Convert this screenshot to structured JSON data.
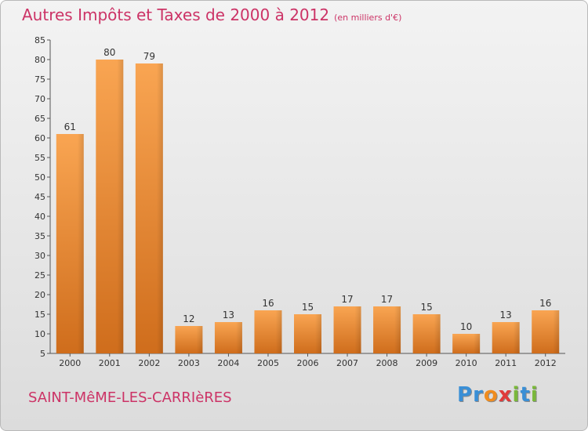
{
  "header": {
    "title": "Autres Impôts et Taxes de 2000 à 2012",
    "unit": "(en milliers d'€)"
  },
  "footer": {
    "commune": "SAINT-MêME-LES-CARRIèRES",
    "logo_letters": [
      "P",
      "r",
      "o",
      "x",
      "i",
      "t",
      "i"
    ],
    "logo_colors": [
      "#3a8fd6",
      "#3a8fd6",
      "#f08c1e",
      "#e03a3a",
      "#7ab83a",
      "#3a8fd6",
      "#7ab83a"
    ]
  },
  "colors": {
    "title": "#cc3366",
    "bar_light": "#f9a552",
    "bar_dark": "#cf6d1c",
    "axis": "#555555"
  },
  "chart_data": {
    "type": "bar",
    "categories": [
      "2000",
      "2001",
      "2002",
      "2003",
      "2004",
      "2005",
      "2006",
      "2007",
      "2008",
      "2009",
      "2010",
      "2011",
      "2012"
    ],
    "values": [
      61,
      80,
      79,
      12,
      13,
      16,
      15,
      17,
      17,
      15,
      10,
      13,
      16
    ],
    "ylim": [
      5,
      85
    ],
    "yticks": [
      5,
      10,
      15,
      20,
      25,
      30,
      35,
      40,
      45,
      50,
      55,
      60,
      65,
      70,
      75,
      80,
      85
    ],
    "grid": false,
    "data_labels": true
  }
}
